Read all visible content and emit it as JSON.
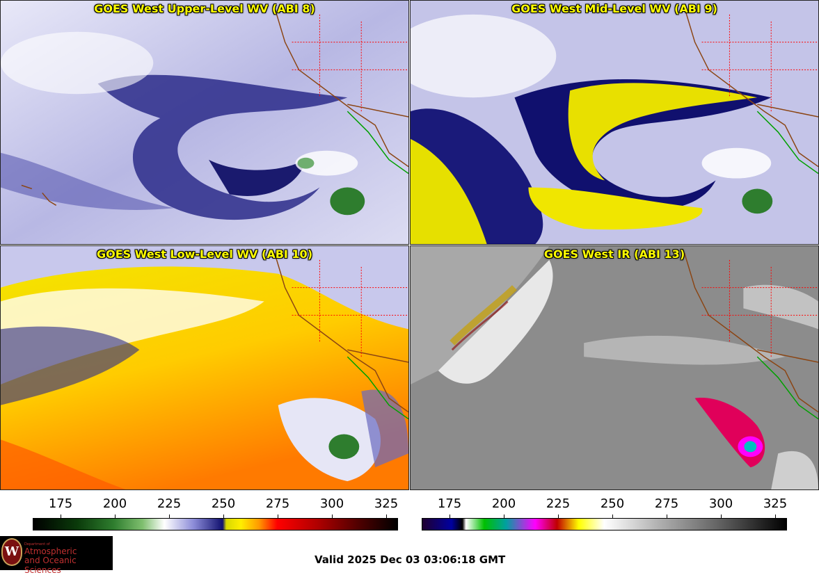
{
  "panels": [
    {
      "title": "GOES West Upper-Level WV (ABI 8)"
    },
    {
      "title": "GOES West Mid-Level WV (ABI 9)"
    },
    {
      "title": "GOES West Low-Level WV (ABI 10)"
    },
    {
      "title": "GOES West IR (ABI 13)"
    }
  ],
  "colorbar_wv": {
    "ticks": [
      "175",
      "200",
      "225",
      "250",
      "275",
      "300",
      "325"
    ]
  },
  "colorbar_ir": {
    "ticks": [
      "175",
      "200",
      "225",
      "250",
      "275",
      "300",
      "325"
    ]
  },
  "logo": {
    "seal_letter": "W",
    "dept": "Department of",
    "line1": "Atmospheric",
    "line2": "and Oceanic Sciences"
  },
  "footer": {
    "valid_time": "Valid 2025 Dec 03 03:06:18 GMT"
  },
  "colors": {
    "title": "#ffff00",
    "borders": "#8b4513",
    "state_lines": "#ff0000",
    "mexico_coast": "#00a000"
  }
}
